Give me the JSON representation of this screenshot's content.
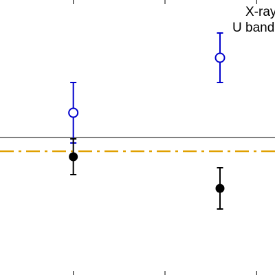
{
  "chart_data": {
    "type": "scatter",
    "x_range": [
      -0.8,
      2.2
    ],
    "y_range": [
      -1.0,
      1.0
    ],
    "x_ticks": [
      0,
      1,
      2
    ],
    "zero_line": 0,
    "grid": false,
    "legend_position": "top-right",
    "reference_line": {
      "y": -0.1,
      "style": "dash-dot",
      "color": "#E0A000"
    },
    "series": [
      {
        "name": "X-rays",
        "marker": "open-circle",
        "color": "#0000CC",
        "points": [
          {
            "x": 0,
            "y": 0.18,
            "err_low": 0.22,
            "err_high": 0.22
          },
          {
            "x": 1.6,
            "y": 0.58,
            "err_low": 0.18,
            "err_high": 0.18
          }
        ]
      },
      {
        "name": "U band",
        "marker": "filled-circle",
        "color": "#000000",
        "points": [
          {
            "x": 0,
            "y": -0.14,
            "err_low": 0.13,
            "err_high": 0.13
          },
          {
            "x": 1.6,
            "y": -0.37,
            "err_low": 0.15,
            "err_high": 0.15
          }
        ]
      }
    ]
  }
}
